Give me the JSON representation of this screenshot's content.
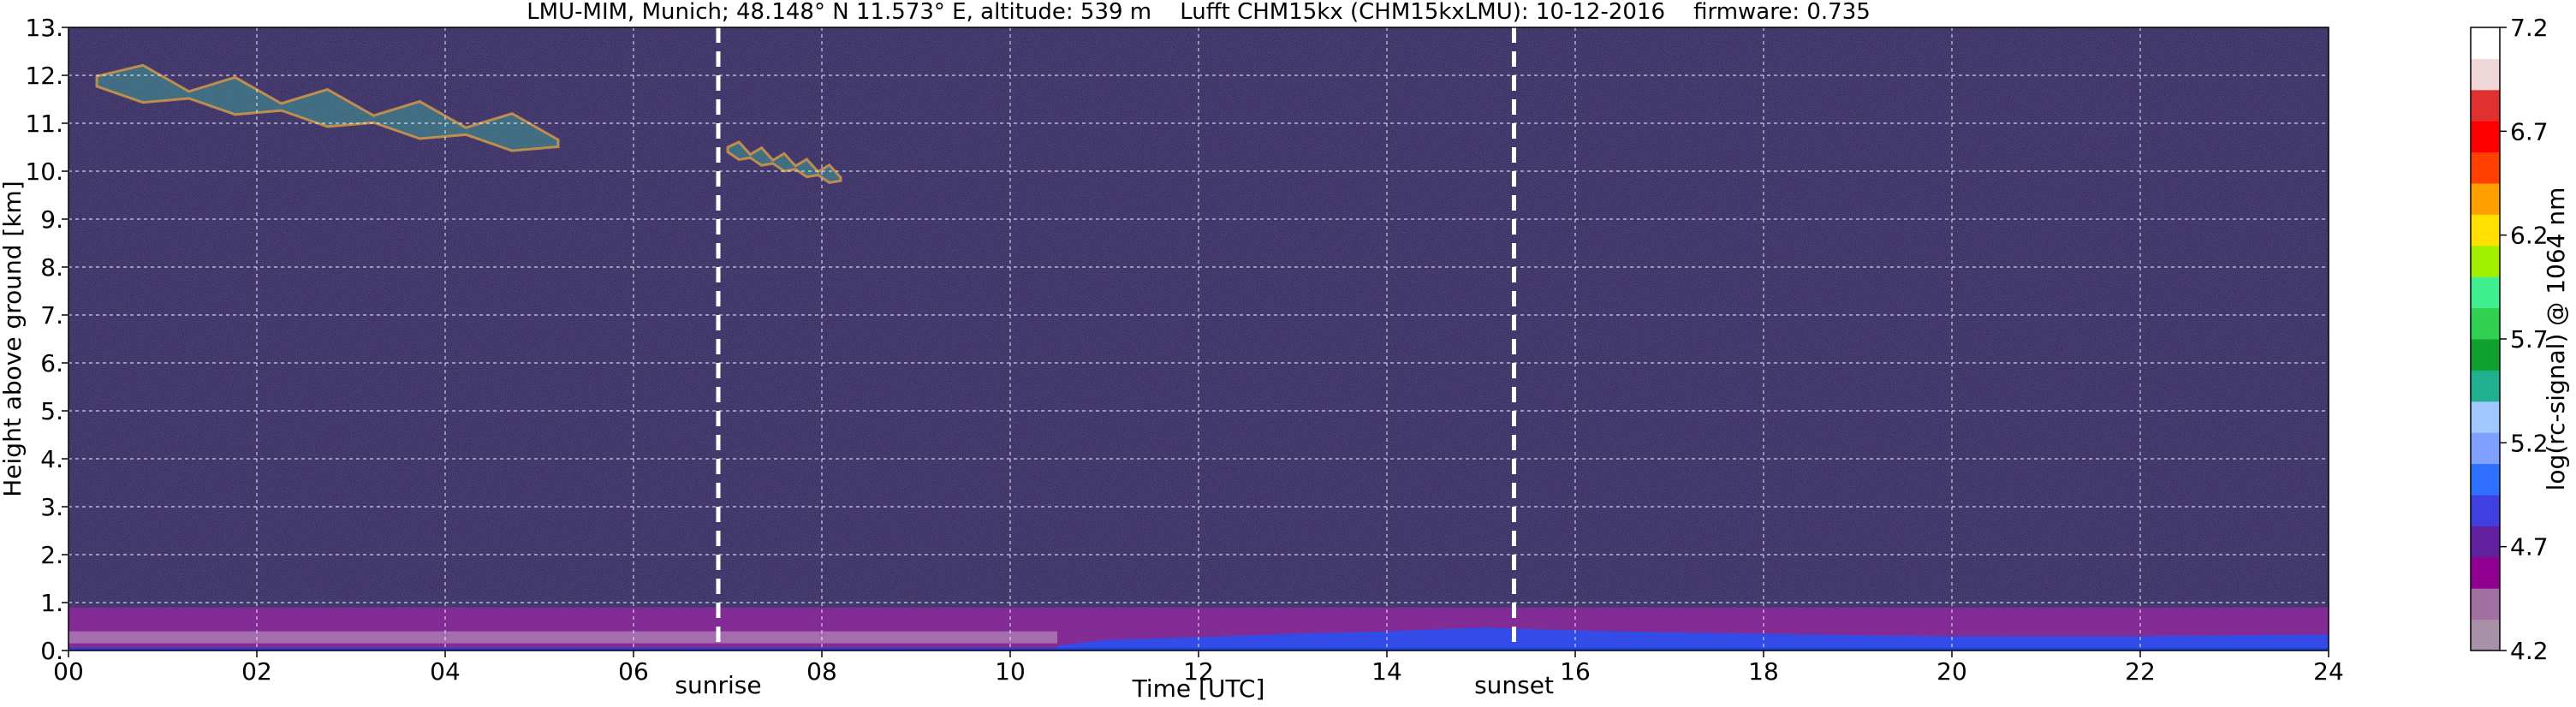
{
  "chart_data": {
    "type": "heatmap",
    "title": "LMU-MIM, Munich; 48.148° N 11.573° E, altitude: 539 m    Lufft CHM15kx (CHM15kxLMU): 10-12-2016    firmware: 0.735",
    "xlabel": "Time [UTC]",
    "ylabel": "Height above ground [km]",
    "xlim": [
      0,
      24
    ],
    "ylim": [
      0,
      13
    ],
    "x_ticks": [
      0,
      2,
      4,
      6,
      8,
      10,
      12,
      14,
      16,
      18,
      20,
      22,
      24
    ],
    "x_tick_labels": [
      "00",
      "02",
      "04",
      "06",
      "08",
      "10",
      "12",
      "14",
      "16",
      "18",
      "20",
      "22",
      "24"
    ],
    "y_ticks": [
      0,
      1,
      2,
      3,
      4,
      5,
      6,
      7,
      8,
      9,
      10,
      11,
      12,
      13
    ],
    "y_tick_labels": [
      "0.",
      "1.",
      "2.",
      "3.",
      "4.",
      "5.",
      "6.",
      "7.",
      "8.",
      "9.",
      "10.",
      "11.",
      "12.",
      "13."
    ],
    "grid": true,
    "vertical_markers": [
      {
        "x": 6.9,
        "label": "sunrise"
      },
      {
        "x": 15.35,
        "label": "sunset"
      }
    ],
    "colorbar": {
      "label": "log(rc-signal) @ 1064 nm",
      "range": [
        4.2,
        7.2
      ],
      "ticks": [
        4.2,
        4.7,
        5.2,
        5.7,
        6.2,
        6.7,
        7.2
      ],
      "tick_labels": [
        "4.2",
        "4.7",
        "5.2",
        "5.7",
        "6.2",
        "6.7",
        "7.2"
      ],
      "colors": [
        "#a890a8",
        "#a070a0",
        "#900090",
        "#6020a0",
        "#4040e0",
        "#3070ff",
        "#80a0ff",
        "#a0c8ff",
        "#20b090",
        "#10a030",
        "#30d050",
        "#40f090",
        "#a0f000",
        "#ffe000",
        "#ffa000",
        "#ff4000",
        "#ff0000",
        "#e03030",
        "#f0d8d8",
        "#ffffff"
      ]
    },
    "features": {
      "boundary_layer": {
        "x_range": [
          0,
          24
        ],
        "height_range": [
          0.0,
          0.9
        ]
      },
      "cirrus_clouds": [
        {
          "x_range": [
            0.3,
            5.2
          ],
          "height_range": [
            10.3,
            12.4
          ]
        },
        {
          "x_range": [
            7.0,
            8.2
          ],
          "height_range": [
            9.7,
            10.7
          ]
        }
      ]
    }
  }
}
